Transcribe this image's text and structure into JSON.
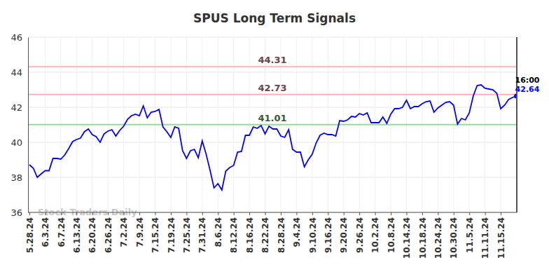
{
  "chart_data": {
    "type": "line",
    "title": "SPUS Long Term Signals",
    "categories": [
      "5.28.24",
      null,
      null,
      null,
      "6.3.24",
      null,
      null,
      null,
      "6.7.24",
      null,
      null,
      null,
      "6.13.24",
      null,
      null,
      null,
      "6.20.24",
      null,
      null,
      null,
      "6.26.24",
      null,
      null,
      null,
      "7.2.24",
      null,
      null,
      null,
      "7.9.24",
      null,
      null,
      null,
      "7.15.24",
      null,
      null,
      null,
      "7.19.24",
      null,
      null,
      null,
      "7.25.24",
      null,
      null,
      null,
      "7.31.24",
      null,
      null,
      null,
      "8.6.24",
      null,
      null,
      null,
      "8.12.24",
      null,
      null,
      null,
      "8.16.24",
      null,
      null,
      null,
      "8.22.24",
      null,
      null,
      null,
      "8.28.24",
      null,
      null,
      null,
      "9.4.24",
      null,
      null,
      null,
      "9.10.24",
      null,
      null,
      null,
      "9.16.24",
      null,
      null,
      null,
      "9.20.24",
      null,
      null,
      null,
      "9.26.24",
      null,
      null,
      null,
      "10.2.24",
      null,
      null,
      null,
      "10.8.24",
      null,
      null,
      null,
      "10.14.24",
      null,
      null,
      null,
      "10.18.24",
      null,
      null,
      null,
      "10.24.24",
      null,
      null,
      null,
      "10.30.24",
      null,
      null,
      null,
      "11.5.24",
      null,
      null,
      null,
      "11.11.24",
      null,
      null,
      null,
      "11.15.24",
      null,
      null,
      null,
      null
    ],
    "values": [
      38.72,
      38.52,
      38.0,
      38.2,
      38.38,
      38.38,
      39.08,
      39.08,
      39.04,
      39.28,
      39.64,
      40.04,
      40.16,
      40.24,
      40.6,
      40.76,
      40.44,
      40.32,
      40.0,
      40.48,
      40.64,
      40.72,
      40.36,
      40.68,
      40.92,
      41.32,
      41.52,
      41.6,
      41.52,
      42.08,
      41.4,
      41.72,
      41.76,
      41.88,
      40.88,
      40.6,
      40.28,
      40.88,
      40.8,
      39.52,
      39.08,
      39.52,
      39.6,
      39.12,
      40.08,
      39.32,
      38.4,
      37.4,
      37.64,
      37.28,
      38.36,
      38.56,
      38.68,
      39.44,
      39.48,
      40.4,
      40.4,
      40.88,
      40.8,
      40.96,
      40.48,
      40.92,
      40.76,
      40.76,
      40.36,
      40.28,
      40.72,
      39.6,
      39.44,
      39.44,
      38.6,
      39.0,
      39.32,
      39.96,
      40.4,
      40.52,
      40.44,
      40.44,
      40.36,
      41.24,
      41.2,
      41.28,
      41.48,
      41.44,
      41.64,
      41.56,
      41.68,
      41.12,
      41.12,
      41.12,
      41.44,
      41.08,
      41.6,
      41.92,
      41.92,
      42.0,
      42.4,
      41.92,
      42.04,
      42.04,
      42.2,
      42.32,
      42.36,
      41.72,
      41.96,
      42.12,
      42.28,
      42.32,
      42.12,
      41.04,
      41.36,
      41.28,
      41.68,
      42.64,
      43.24,
      43.28,
      43.08,
      43.04,
      43.0,
      42.8,
      41.92,
      42.12,
      42.44,
      42.56,
      42.64
    ],
    "color": "#0000ff",
    "ylim": [
      36,
      46
    ],
    "yticks": [
      36,
      38,
      40,
      42,
      44,
      46
    ],
    "grid": true,
    "reference_lines": [
      {
        "value": 44.31,
        "color": "#ffb3b3"
      },
      {
        "value": 42.73,
        "color": "#ffb3b3"
      },
      {
        "value": 41.01,
        "color": "#90e090"
      }
    ],
    "last_time": "16:00",
    "watermark": "Stock Traders Daily"
  }
}
